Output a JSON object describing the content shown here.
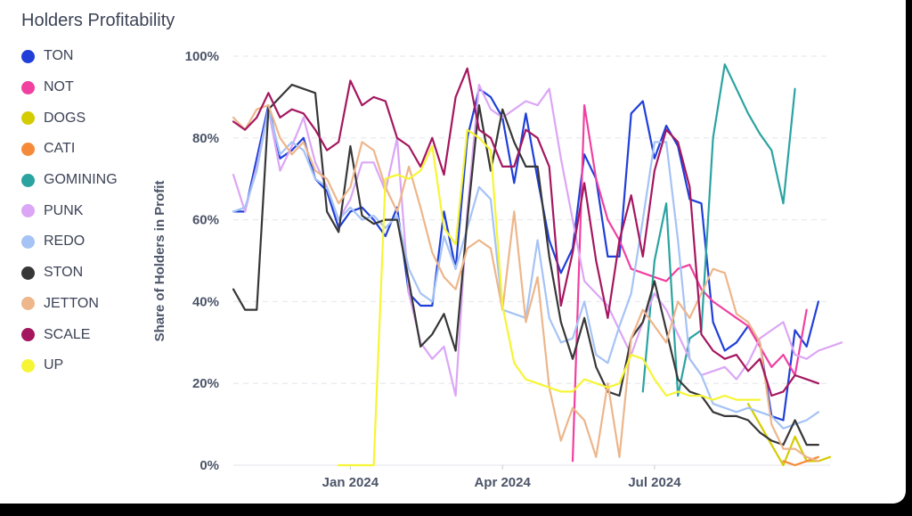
{
  "chart_data": {
    "type": "line",
    "title": "Holders Profitability",
    "xlabel": "",
    "ylabel": "Share of Holders in Profit",
    "x_range": [
      "2023-10-23",
      "2024-10-14"
    ],
    "ylim": [
      0,
      100
    ],
    "y_ticks": [
      0,
      20,
      40,
      60,
      80,
      100
    ],
    "y_tick_labels": [
      "0%",
      "20%",
      "40%",
      "60%",
      "80%",
      "100%"
    ],
    "x_ticks": [
      "2024-01-01",
      "2024-04-01",
      "2024-07-01"
    ],
    "x_tick_labels": [
      "Jan 2024",
      "Apr 2024",
      "Jul 2024"
    ],
    "grid": "horizontal dashed",
    "legend_position": "left",
    "series": [
      {
        "name": "TON",
        "color": "#1f3fd8",
        "x_start": "2023-10-23",
        "values": [
          62,
          62,
          75,
          88,
          75,
          77,
          80,
          70,
          67,
          58,
          62,
          63,
          60,
          56,
          63,
          42,
          39,
          39,
          62,
          48,
          80,
          92,
          90,
          85,
          69,
          86,
          70,
          55,
          47,
          53,
          76,
          70,
          51,
          51,
          86,
          89,
          75,
          83,
          78,
          65,
          64,
          35,
          28,
          30,
          34,
          30,
          12,
          11,
          33,
          29,
          40
        ]
      },
      {
        "name": "NOT",
        "color": "#f040a0",
        "x_start": "2024-05-13",
        "values": [
          1,
          88,
          70,
          60,
          55,
          48,
          47,
          46,
          45,
          48,
          49,
          43,
          40,
          38,
          36,
          34,
          29,
          24,
          27,
          22,
          38
        ]
      },
      {
        "name": "DOGS",
        "color": "#d4cc00",
        "x_start": "2024-08-26",
        "values": [
          15,
          10,
          5,
          0,
          7,
          1,
          1,
          2
        ]
      },
      {
        "name": "CATI",
        "color": "#f58b3a",
        "x_start": "2024-09-16",
        "values": [
          1,
          0,
          1,
          2
        ]
      },
      {
        "name": "GOMINING",
        "color": "#2ba3a0",
        "x_start": "2024-06-24",
        "values": [
          18,
          50,
          64,
          17,
          31,
          33,
          80,
          98,
          92,
          86,
          81,
          77,
          64,
          92
        ]
      },
      {
        "name": "PUNK",
        "color": "#dba6f5",
        "x_start": "2023-10-23",
        "values": [
          71,
          62,
          73,
          87,
          72,
          78,
          85,
          74,
          68,
          60,
          65,
          74,
          74,
          67,
          80,
          42,
          30,
          26,
          29,
          17,
          62,
          93,
          87,
          85,
          87,
          89,
          88,
          92,
          75,
          60,
          45,
          42,
          39,
          33,
          27,
          35,
          42,
          38,
          32,
          26,
          22,
          23,
          24,
          21,
          25,
          31,
          33,
          35,
          27,
          26,
          28,
          29,
          30
        ]
      },
      {
        "name": "REDO",
        "color": "#a5c3f5",
        "x_start": "2023-10-23",
        "values": [
          62,
          63,
          72,
          87,
          76,
          79,
          77,
          70,
          68,
          60,
          63,
          60,
          61,
          58,
          61,
          48,
          42,
          40,
          56,
          48,
          58,
          68,
          65,
          38,
          37,
          36,
          55,
          36,
          30,
          31,
          40,
          27,
          25,
          34,
          42,
          60,
          79,
          79,
          55,
          26,
          22,
          15,
          14,
          13,
          14,
          13,
          12,
          9,
          10,
          11,
          13
        ]
      },
      {
        "name": "STON",
        "color": "#373737",
        "x_start": "2023-10-23",
        "values": [
          43,
          38,
          38,
          87,
          90,
          93,
          92,
          91,
          62,
          57,
          78,
          61,
          59,
          60,
          60,
          45,
          29,
          32,
          37,
          28,
          60,
          88,
          72,
          87,
          79,
          73,
          73,
          51,
          35,
          26,
          36,
          24,
          18,
          17,
          31,
          35,
          45,
          33,
          21,
          18,
          17,
          13,
          12,
          12,
          11,
          8,
          6,
          5,
          11,
          5,
          5
        ]
      },
      {
        "name": "JETTON",
        "color": "#edb68b",
        "x_start": "2023-10-23",
        "values": [
          85,
          82,
          87,
          88,
          80,
          76,
          79,
          72,
          70,
          64,
          68,
          79,
          77,
          68,
          62,
          73,
          63,
          52,
          46,
          43,
          53,
          55,
          53,
          38,
          62,
          35,
          46,
          19,
          6,
          14,
          11,
          2,
          20,
          2,
          31,
          38,
          34,
          30,
          40,
          36,
          42,
          48,
          47,
          37,
          35,
          30,
          10,
          4,
          4,
          2,
          1
        ]
      },
      {
        "name": "SCALE",
        "color": "#a4175f",
        "x_start": "2023-10-23",
        "values": [
          84,
          82,
          85,
          91,
          85,
          87,
          86,
          82,
          77,
          79,
          94,
          88,
          90,
          89,
          80,
          78,
          73,
          80,
          71,
          90,
          97,
          82,
          80,
          73,
          73,
          82,
          80,
          73,
          39,
          52,
          69,
          50,
          36,
          55,
          66,
          51,
          72,
          82,
          79,
          68,
          32,
          28,
          26,
          27,
          23,
          26,
          17,
          18,
          22,
          21,
          20
        ]
      },
      {
        "name": "UP",
        "color": "#f6f535",
        "x_start": "2023-12-25",
        "values": [
          0,
          0,
          0,
          0,
          70,
          71,
          70,
          72,
          78,
          58,
          54,
          82,
          80,
          77,
          39,
          25,
          21,
          20,
          19,
          18,
          18,
          21,
          20,
          19,
          20,
          27,
          26,
          21,
          17,
          18,
          17,
          17,
          16,
          17,
          16,
          16,
          16
        ]
      }
    ]
  }
}
